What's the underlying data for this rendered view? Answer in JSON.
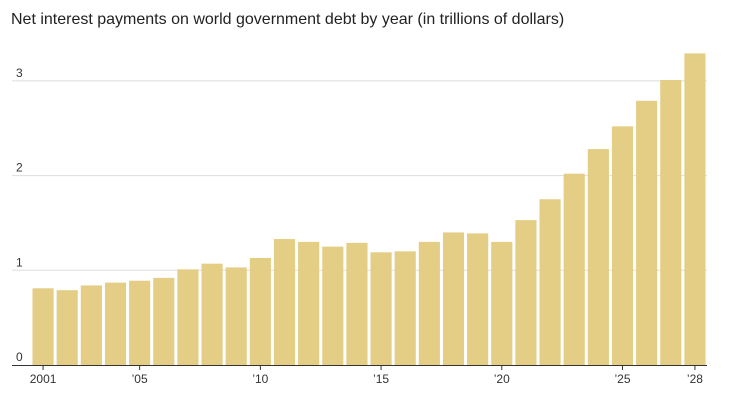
{
  "chart_data": {
    "type": "bar",
    "title": "Net interest payments on world government debt by year (in trillions of dollars)",
    "xlabel": "",
    "ylabel": "",
    "categories": [
      "2001",
      "2002",
      "2003",
      "2004",
      "2005",
      "2006",
      "2007",
      "2008",
      "2009",
      "2010",
      "2011",
      "2012",
      "2013",
      "2014",
      "2015",
      "2016",
      "2017",
      "2018",
      "2019",
      "2020",
      "2021",
      "2022",
      "2023",
      "2024",
      "2025",
      "2026",
      "2027",
      "2028"
    ],
    "values": [
      0.81,
      0.79,
      0.84,
      0.87,
      0.89,
      0.92,
      1.01,
      1.07,
      1.03,
      1.13,
      1.33,
      1.3,
      1.25,
      1.29,
      1.19,
      1.2,
      1.3,
      1.4,
      1.39,
      1.3,
      1.53,
      1.75,
      2.02,
      2.28,
      2.52,
      2.79,
      3.01,
      3.29
    ],
    "ylim": [
      0,
      3.4
    ],
    "y_ticks": [
      {
        "value": 0,
        "label": "0"
      },
      {
        "value": 1,
        "label": "1"
      },
      {
        "value": 2,
        "label": "2"
      },
      {
        "value": 3,
        "label": "3"
      }
    ],
    "x_ticks": [
      {
        "index": 0,
        "label": "2001"
      },
      {
        "index": 4,
        "label": "’05"
      },
      {
        "index": 9,
        "label": "’10"
      },
      {
        "index": 14,
        "label": "’15"
      },
      {
        "index": 19,
        "label": "’20"
      },
      {
        "index": 24,
        "label": "’25"
      },
      {
        "index": 27,
        "label": "’28"
      }
    ],
    "bar_color": "#e4cd85",
    "grid": true,
    "legend": "none"
  }
}
